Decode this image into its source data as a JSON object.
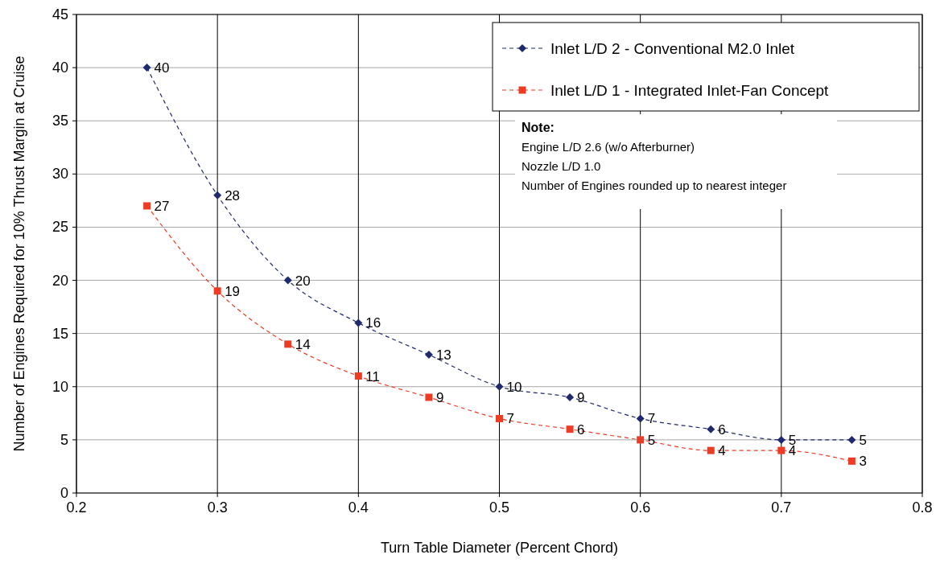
{
  "chart_data": {
    "type": "line",
    "xlabel": "Turn Table Diameter (Percent Chord)",
    "ylabel": "Number of Engines Required for 10% Thrust Margin at Cruise",
    "x": [
      0.25,
      0.3,
      0.35,
      0.4,
      0.45,
      0.5,
      0.55,
      0.6,
      0.65,
      0.7,
      0.75
    ],
    "series": [
      {
        "name": "Inlet L/D 2 - Conventional M2.0 Inlet",
        "color": "#1f2a6e",
        "marker": "diamond",
        "values": [
          40,
          28,
          20,
          16,
          13,
          10,
          9,
          7,
          6,
          5,
          5
        ]
      },
      {
        "name": "Inlet L/D 1 - Integrated Inlet-Fan Concept",
        "color": "#ee3b24",
        "marker": "square",
        "values": [
          27,
          19,
          14,
          11,
          9,
          7,
          6,
          5,
          4,
          4,
          3
        ]
      }
    ],
    "xlim": [
      0.2,
      0.8
    ],
    "xticks": [
      0.2,
      0.3,
      0.4,
      0.5,
      0.6,
      0.7,
      0.8
    ],
    "ylim": [
      0,
      45
    ],
    "yticks": [
      0,
      5,
      10,
      15,
      20,
      25,
      30,
      35,
      40,
      45
    ],
    "grid": true,
    "legend": "top right",
    "line_style": "dashed",
    "data_labels": true,
    "annotations": [
      "Note:",
      "Engine L/D 2.6 (w/o Afterburner)",
      "Nozzle L/D 1.0",
      "Number of Engines rounded up to nearest integer"
    ]
  }
}
